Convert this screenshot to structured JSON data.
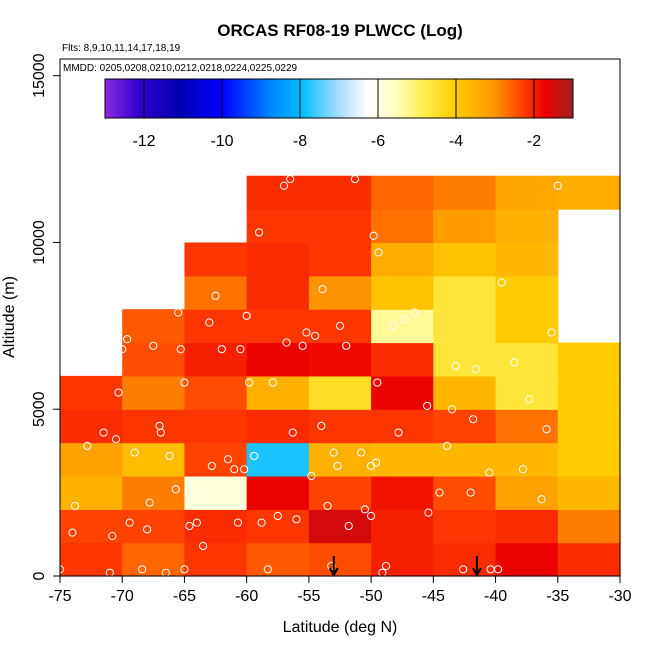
{
  "chart_data": {
    "type": "heatmap",
    "title": "ORCAS RF08-19 PLWCC (Log)",
    "flights_label": "Flts: 8,9,10,11,14,17,18,19",
    "dates_label": "MMDD: 0205,0208,0210,0212,0218,0224,0225,0229",
    "xlabel": "Latitude (deg N)",
    "ylabel": "Altitude (m)",
    "xlim": [
      -75,
      -30
    ],
    "ylim": [
      0,
      15500
    ],
    "x_ticks": [
      "-75",
      "-70",
      "-65",
      "-60",
      "-55",
      "-50",
      "-45",
      "-40",
      "-35",
      "-30"
    ],
    "x_tick_values": [
      -75,
      -70,
      -65,
      -60,
      -55,
      -50,
      -45,
      -40,
      -35,
      -30
    ],
    "y_ticks": [
      "0",
      "5000",
      "10000",
      "15000"
    ],
    "y_tick_values": [
      0,
      5000,
      10000,
      15000
    ],
    "colorbar": {
      "range": [
        -13,
        -1
      ],
      "tick_values": [
        -12,
        -10,
        -8,
        -6,
        -4,
        -2
      ],
      "tick_labels": [
        "-12",
        "-10",
        "-8",
        "-6",
        "-4",
        "-2"
      ]
    },
    "cell_size": {
      "dlat": 5,
      "dalt": 1000
    },
    "cells": [
      [
        -75,
        0,
        -2.2
      ],
      [
        -70,
        0,
        -2.6
      ],
      [
        -65,
        0,
        -2.2
      ],
      [
        -60,
        0,
        -2.5
      ],
      [
        -55,
        0,
        -2.4
      ],
      [
        -50,
        0,
        -2.0
      ],
      [
        -45,
        0,
        -2.1
      ],
      [
        -40,
        0,
        -1.7
      ],
      [
        -35,
        0,
        -2.1
      ],
      [
        -75,
        1000,
        -2.3
      ],
      [
        -70,
        1000,
        -2.3
      ],
      [
        -65,
        1000,
        -2.1
      ],
      [
        -60,
        1000,
        -2.2
      ],
      [
        -55,
        1000,
        -1.5
      ],
      [
        -50,
        1000,
        -2.0
      ],
      [
        -45,
        1000,
        -2.2
      ],
      [
        -40,
        1000,
        -2.1
      ],
      [
        -35,
        1000,
        -2.8
      ],
      [
        -75,
        2000,
        -3.5
      ],
      [
        -70,
        2000,
        -2.8
      ],
      [
        -65,
        2000,
        -5.9
      ],
      [
        -60,
        2000,
        -1.7
      ],
      [
        -55,
        2000,
        -2.3
      ],
      [
        -50,
        2000,
        -1.9
      ],
      [
        -45,
        2000,
        -2.4
      ],
      [
        -40,
        2000,
        -3.2
      ],
      [
        -35,
        2000,
        -3.6
      ],
      [
        -75,
        3000,
        -3.2
      ],
      [
        -70,
        3000,
        -3.7
      ],
      [
        -65,
        3000,
        -2.3
      ],
      [
        -60,
        3000,
        -7.8
      ],
      [
        -55,
        3000,
        -3.5
      ],
      [
        -50,
        3000,
        -3.6
      ],
      [
        -45,
        3000,
        -3.6
      ],
      [
        -40,
        3000,
        -3.6
      ],
      [
        -35,
        3000,
        -4.0
      ],
      [
        -75,
        4000,
        -2.1
      ],
      [
        -70,
        4000,
        -2.2
      ],
      [
        -65,
        4000,
        -2.2
      ],
      [
        -60,
        4000,
        -2.1
      ],
      [
        -55,
        4000,
        -2.2
      ],
      [
        -50,
        4000,
        -2.2
      ],
      [
        -45,
        4000,
        -2.3
      ],
      [
        -40,
        4000,
        -2.7
      ],
      [
        -35,
        4000,
        -4.0
      ],
      [
        -75,
        5000,
        -2.2
      ],
      [
        -70,
        5000,
        -2.8
      ],
      [
        -65,
        5000,
        -2.4
      ],
      [
        -60,
        5000,
        -3.5
      ],
      [
        -55,
        5000,
        -4.4
      ],
      [
        -50,
        5000,
        -1.7
      ],
      [
        -45,
        5000,
        -3.6
      ],
      [
        -40,
        5000,
        -4.6
      ],
      [
        -35,
        5000,
        -4.0
      ],
      [
        -70,
        6000,
        -2.4
      ],
      [
        -65,
        6000,
        -2.0
      ],
      [
        -60,
        6000,
        -1.7
      ],
      [
        -55,
        6000,
        -1.8
      ],
      [
        -50,
        6000,
        -2.1
      ],
      [
        -45,
        6000,
        -4.6
      ],
      [
        -40,
        6000,
        -4.6
      ],
      [
        -35,
        6000,
        -4.0
      ],
      [
        -70,
        7000,
        -2.5
      ],
      [
        -65,
        7000,
        -2.2
      ],
      [
        -60,
        7000,
        -2.2
      ],
      [
        -55,
        7000,
        -2.2
      ],
      [
        -50,
        7000,
        -5.3
      ],
      [
        -45,
        7000,
        -4.6
      ],
      [
        -40,
        7000,
        -4.0
      ],
      [
        -65,
        8000,
        -2.7
      ],
      [
        -60,
        8000,
        -2.1
      ],
      [
        -55,
        8000,
        -3.0
      ],
      [
        -50,
        8000,
        -3.8
      ],
      [
        -45,
        8000,
        -4.6
      ],
      [
        -40,
        8000,
        -4.0
      ],
      [
        -65,
        9000,
        -2.2
      ],
      [
        -60,
        9000,
        -2.1
      ],
      [
        -55,
        9000,
        -2.2
      ],
      [
        -50,
        9000,
        -3.4
      ],
      [
        -45,
        9000,
        -3.8
      ],
      [
        -40,
        9000,
        -3.6
      ],
      [
        -60,
        10000,
        -2.2
      ],
      [
        -55,
        10000,
        -2.2
      ],
      [
        -50,
        10000,
        -2.7
      ],
      [
        -45,
        10000,
        -3.1
      ],
      [
        -40,
        10000,
        -3.5
      ],
      [
        -60,
        11000,
        -2.1
      ],
      [
        -55,
        11000,
        -2.1
      ],
      [
        -50,
        11000,
        -2.6
      ],
      [
        -45,
        11000,
        -2.8
      ],
      [
        -40,
        11000,
        -3.3
      ],
      [
        -35,
        11000,
        -3.4
      ]
    ],
    "sample_points": [
      [
        -75,
        200
      ],
      [
        -74,
        1300
      ],
      [
        -73.8,
        2100
      ],
      [
        -72.8,
        3900
      ],
      [
        -71.5,
        4300
      ],
      [
        -71,
        100
      ],
      [
        -70.8,
        1200
      ],
      [
        -70.5,
        4100
      ],
      [
        -70.3,
        5500
      ],
      [
        -70,
        6800
      ],
      [
        -69.6,
        7100
      ],
      [
        -69.4,
        1600
      ],
      [
        -69,
        3700
      ],
      [
        -68.4,
        200
      ],
      [
        -68,
        1400
      ],
      [
        -67.8,
        2200
      ],
      [
        -67.5,
        6900
      ],
      [
        -67,
        4500
      ],
      [
        -66.9,
        4300
      ],
      [
        -66.5,
        100
      ],
      [
        -66.2,
        3600
      ],
      [
        -65.7,
        2600
      ],
      [
        -65.5,
        7900
      ],
      [
        -65.3,
        6800
      ],
      [
        -65,
        5800
      ],
      [
        -65,
        200
      ],
      [
        -64.6,
        1500
      ],
      [
        -64,
        1600
      ],
      [
        -63.5,
        900
      ],
      [
        -63,
        7600
      ],
      [
        -62.8,
        3300
      ],
      [
        -62.5,
        8400
      ],
      [
        -62,
        6800
      ],
      [
        -61.5,
        3500
      ],
      [
        -61,
        3200
      ],
      [
        -60.7,
        1600
      ],
      [
        -60.5,
        6800
      ],
      [
        -60.2,
        3200
      ],
      [
        -60,
        7800
      ],
      [
        -59.8,
        5800
      ],
      [
        -59.4,
        3600
      ],
      [
        -59,
        10300
      ],
      [
        -58.8,
        1600
      ],
      [
        -58.3,
        200
      ],
      [
        -57.9,
        5800
      ],
      [
        -57.5,
        1800
      ],
      [
        -57,
        11700
      ],
      [
        -56.8,
        7000
      ],
      [
        -56.5,
        11900
      ],
      [
        -56.3,
        4300
      ],
      [
        -56,
        1700
      ],
      [
        -55.5,
        6900
      ],
      [
        -55.2,
        7300
      ],
      [
        -54.8,
        3000
      ],
      [
        -54.5,
        7200
      ],
      [
        -54,
        4500
      ],
      [
        -53.9,
        8600
      ],
      [
        -53.5,
        2100
      ],
      [
        -53.2,
        300
      ],
      [
        -53,
        3700
      ],
      [
        -52.7,
        3300
      ],
      [
        -52.5,
        7500
      ],
      [
        -52,
        6900
      ],
      [
        -51.8,
        1500
      ],
      [
        -51.3,
        11900
      ],
      [
        -50.8,
        3700
      ],
      [
        -50.5,
        2000
      ],
      [
        -50,
        1800
      ],
      [
        -50,
        3300
      ],
      [
        -49.6,
        3400
      ],
      [
        -49.5,
        5800
      ],
      [
        -49.8,
        10200
      ],
      [
        -49.4,
        9700
      ],
      [
        -49.1,
        100
      ],
      [
        -48.8,
        300
      ],
      [
        -48.2,
        7500
      ],
      [
        -47.8,
        4300
      ],
      [
        -47.3,
        7700
      ],
      [
        -46.5,
        7900
      ],
      [
        -45.5,
        5100
      ],
      [
        -45.4,
        1900
      ],
      [
        -44.5,
        2500
      ],
      [
        -43.9,
        3900
      ],
      [
        -43.5,
        5000
      ],
      [
        -43.2,
        6300
      ],
      [
        -42.6,
        200
      ],
      [
        -42,
        2500
      ],
      [
        -41.8,
        4700
      ],
      [
        -41.6,
        6200
      ],
      [
        -40.5,
        3100
      ],
      [
        -40.4,
        200
      ],
      [
        -39.8,
        200
      ],
      [
        -39.5,
        8800
      ],
      [
        -38.5,
        6400
      ],
      [
        -37.8,
        3200
      ],
      [
        -37.3,
        5300
      ],
      [
        -36.3,
        2300
      ],
      [
        -35.9,
        4400
      ],
      [
        -35.5,
        7300
      ],
      [
        -35,
        11700
      ]
    ],
    "markers": [
      {
        "label": "arrow",
        "x": -53,
        "y": 0
      },
      {
        "label": "arrow",
        "x": -41.5,
        "y": 0
      }
    ]
  }
}
